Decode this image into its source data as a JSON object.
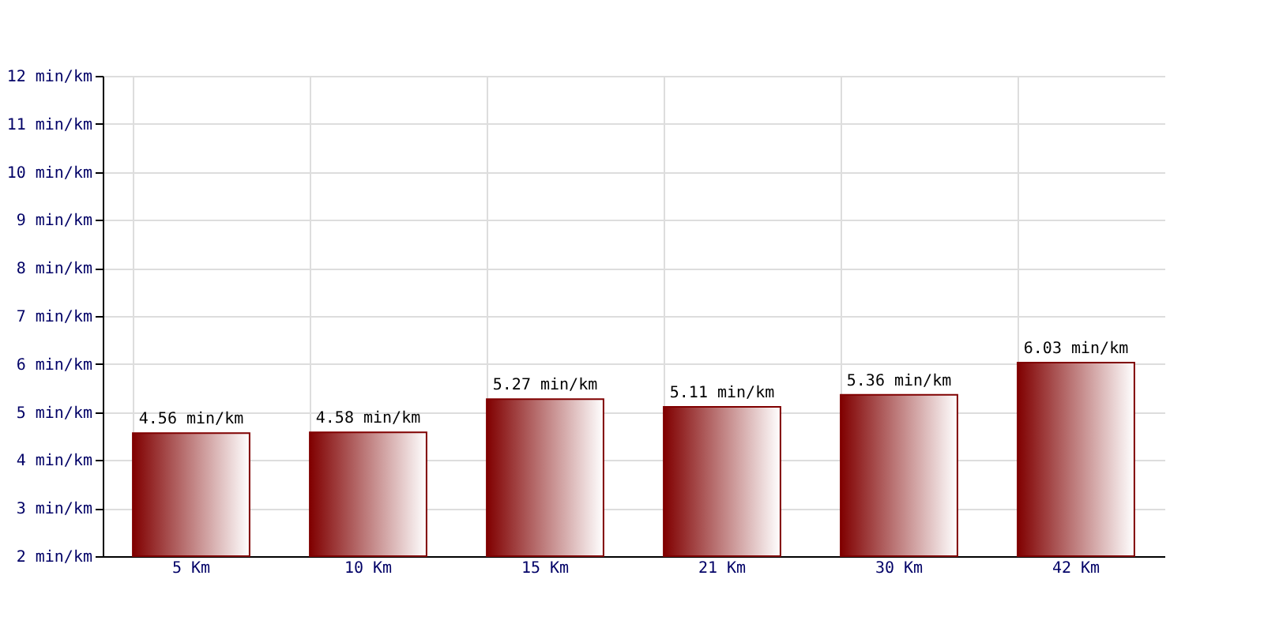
{
  "chart_data": {
    "type": "bar",
    "categories": [
      "5 Km",
      "10 Km",
      "15 Km",
      "21 Km",
      "30 Km",
      "42 Km"
    ],
    "values": [
      4.56,
      4.58,
      5.27,
      5.11,
      5.36,
      6.03
    ],
    "value_labels": [
      "4.56 min/km",
      "4.58 min/km",
      "5.27 min/km",
      "5.11 min/km",
      "5.36 min/km",
      "6.03 min/km"
    ],
    "color": "#800000",
    "ylim": [
      2,
      12
    ],
    "yticks": [
      {
        "value": 2,
        "label": "2 min/km"
      },
      {
        "value": 3,
        "label": "3 min/km"
      },
      {
        "value": 4,
        "label": "4 min/km"
      },
      {
        "value": 5,
        "label": "5 min/km"
      },
      {
        "value": 6,
        "label": "6 min/km"
      },
      {
        "value": 7,
        "label": "7 min/km"
      },
      {
        "value": 8,
        "label": "8 min/km"
      },
      {
        "value": 9,
        "label": "9 min/km"
      },
      {
        "value": 10,
        "label": "10 min/km"
      },
      {
        "value": 11,
        "label": "11 min/km"
      },
      {
        "value": 12,
        "label": "12 min/km"
      }
    ],
    "grid": true
  }
}
